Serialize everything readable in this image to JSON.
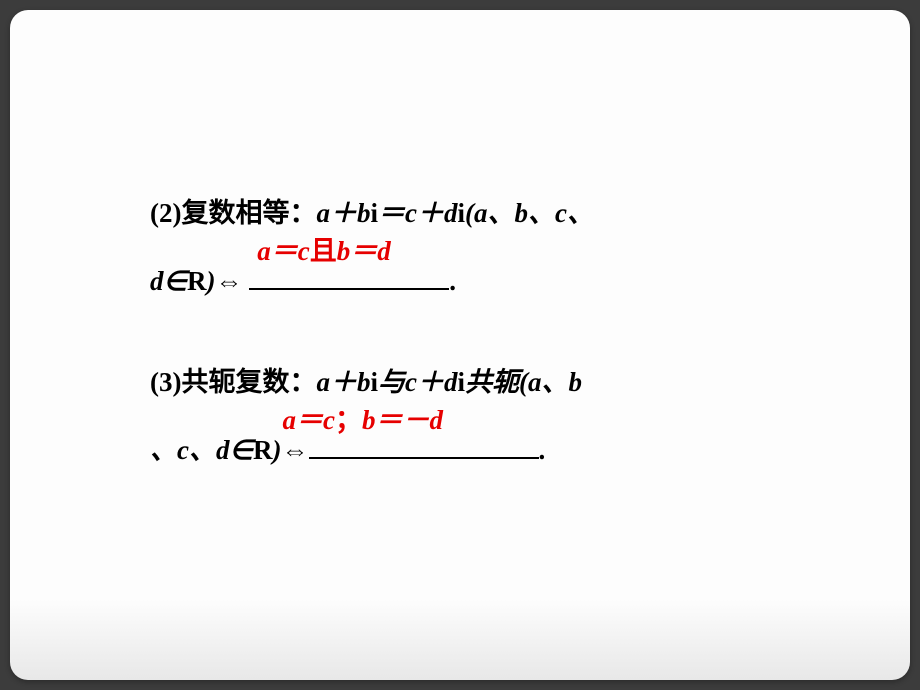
{
  "slide": {
    "background_top": "#fdfdfd",
    "background_bottom": "#e8e8e8",
    "border_radius": 18,
    "text_color": "#000000",
    "answer_color": "#e60000",
    "font_size_pt": 20
  },
  "item2": {
    "prefix": "(2)",
    "label": "复数相等：",
    "expr_part1": "a＋bi＝c＋di(a、b、c、",
    "expr_part2": "d∈R)⇔ ",
    "blank_answer_a": "a＝c",
    "blank_answer_conj": "且",
    "blank_answer_b": "b＝d",
    "suffix": "."
  },
  "item3": {
    "prefix": "(3)",
    "label": "共轭复数：",
    "expr_part1": "a＋bi与c＋di共轭(a、b",
    "expr_part2": "、c、d∈R)⇔",
    "blank_answer_a": "a＝c",
    "blank_answer_sep": "；",
    "blank_answer_b": "b＝－d",
    "suffix": "."
  }
}
